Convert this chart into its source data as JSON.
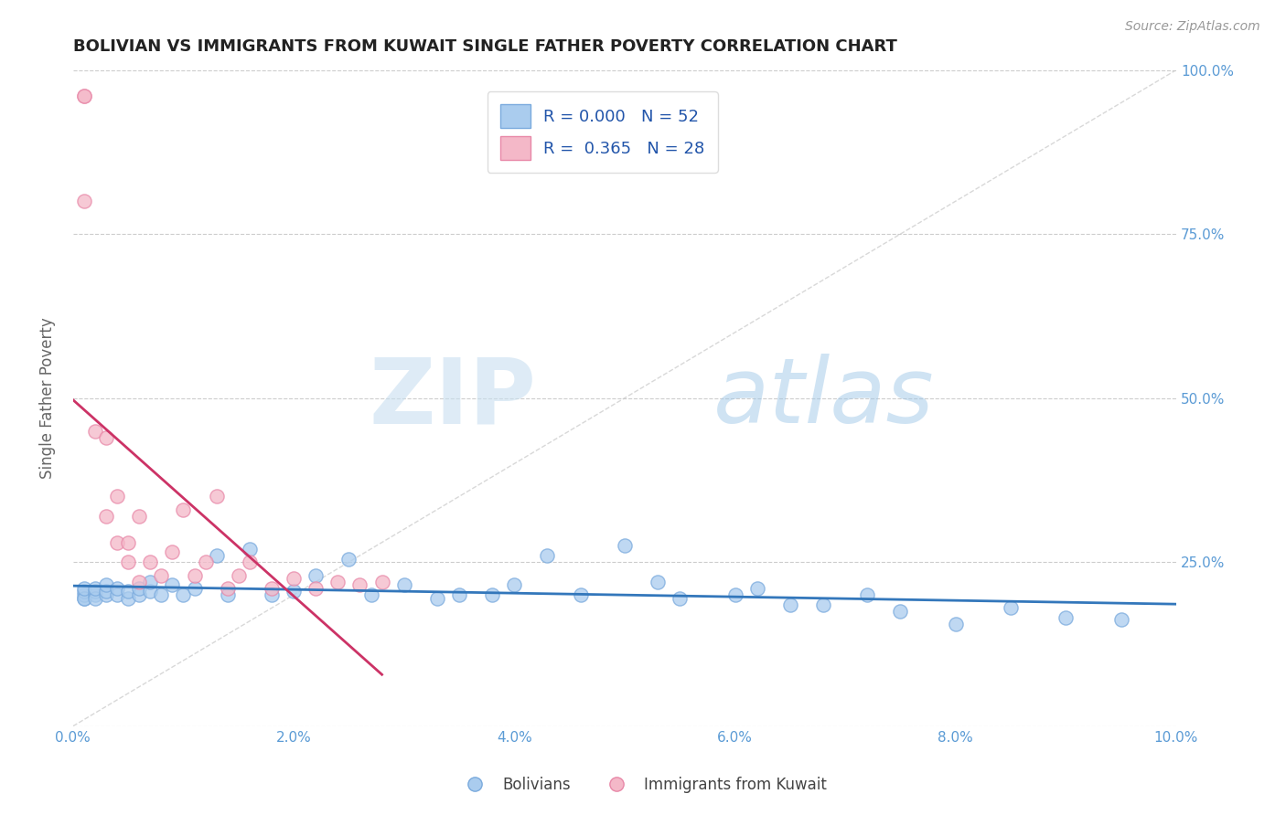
{
  "title": "BOLIVIAN VS IMMIGRANTS FROM KUWAIT SINGLE FATHER POVERTY CORRELATION CHART",
  "source": "Source: ZipAtlas.com",
  "ylabel": "Single Father Poverty",
  "xlim": [
    0,
    0.1
  ],
  "ylim": [
    0,
    1.0
  ],
  "xticks": [
    0.0,
    0.02,
    0.04,
    0.06,
    0.08,
    0.1
  ],
  "yticks": [
    0.0,
    0.25,
    0.5,
    0.75,
    1.0
  ],
  "xtick_labels": [
    "0.0%",
    "2.0%",
    "4.0%",
    "6.0%",
    "8.0%",
    "10.0%"
  ],
  "ytick_labels": [
    "",
    "25.0%",
    "50.0%",
    "75.0%",
    "100.0%"
  ],
  "bolivia_color": "#aaccee",
  "kuwait_color": "#f4b8c8",
  "bolivia_edge": "#7aaadd",
  "kuwait_edge": "#e888a8",
  "trend_blue": "#3377bb",
  "trend_pink": "#cc3366",
  "diag_color": "#c8c8c8",
  "r_blue": 0.0,
  "n_blue": 52,
  "r_pink": 0.365,
  "n_pink": 28,
  "bolivia_x": [
    0.001,
    0.001,
    0.001,
    0.001,
    0.001,
    0.002,
    0.002,
    0.002,
    0.002,
    0.003,
    0.003,
    0.003,
    0.004,
    0.004,
    0.005,
    0.005,
    0.006,
    0.006,
    0.007,
    0.007,
    0.008,
    0.009,
    0.01,
    0.011,
    0.013,
    0.014,
    0.016,
    0.018,
    0.02,
    0.022,
    0.025,
    0.027,
    0.03,
    0.033,
    0.035,
    0.038,
    0.04,
    0.043,
    0.046,
    0.05,
    0.053,
    0.055,
    0.06,
    0.062,
    0.065,
    0.068,
    0.072,
    0.075,
    0.08,
    0.085,
    0.09,
    0.095
  ],
  "bolivia_y": [
    0.195,
    0.2,
    0.205,
    0.195,
    0.21,
    0.2,
    0.205,
    0.195,
    0.21,
    0.2,
    0.205,
    0.215,
    0.2,
    0.21,
    0.195,
    0.205,
    0.2,
    0.21,
    0.205,
    0.22,
    0.2,
    0.215,
    0.2,
    0.21,
    0.26,
    0.2,
    0.27,
    0.2,
    0.205,
    0.23,
    0.255,
    0.2,
    0.215,
    0.195,
    0.2,
    0.2,
    0.215,
    0.26,
    0.2,
    0.275,
    0.22,
    0.195,
    0.2,
    0.21,
    0.185,
    0.185,
    0.2,
    0.175,
    0.155,
    0.18,
    0.165,
    0.163
  ],
  "kuwait_x": [
    0.001,
    0.001,
    0.001,
    0.002,
    0.003,
    0.003,
    0.004,
    0.004,
    0.005,
    0.005,
    0.006,
    0.006,
    0.007,
    0.008,
    0.009,
    0.01,
    0.011,
    0.012,
    0.013,
    0.014,
    0.015,
    0.016,
    0.018,
    0.02,
    0.022,
    0.024,
    0.026,
    0.028
  ],
  "kuwait_y": [
    0.96,
    0.96,
    0.8,
    0.45,
    0.44,
    0.32,
    0.35,
    0.28,
    0.28,
    0.25,
    0.32,
    0.22,
    0.25,
    0.23,
    0.265,
    0.33,
    0.23,
    0.25,
    0.35,
    0.21,
    0.23,
    0.25,
    0.21,
    0.225,
    0.21,
    0.22,
    0.215,
    0.22
  ],
  "watermark_zip": "ZIP",
  "watermark_atlas": "atlas",
  "legend_labels": [
    "Bolivians",
    "Immigrants from Kuwait"
  ],
  "title_color": "#222222",
  "axis_label_color": "#666666",
  "tick_color_blue": "#5b9bd5",
  "grid_color": "#cccccc",
  "legend_text_color": "#2255aa"
}
